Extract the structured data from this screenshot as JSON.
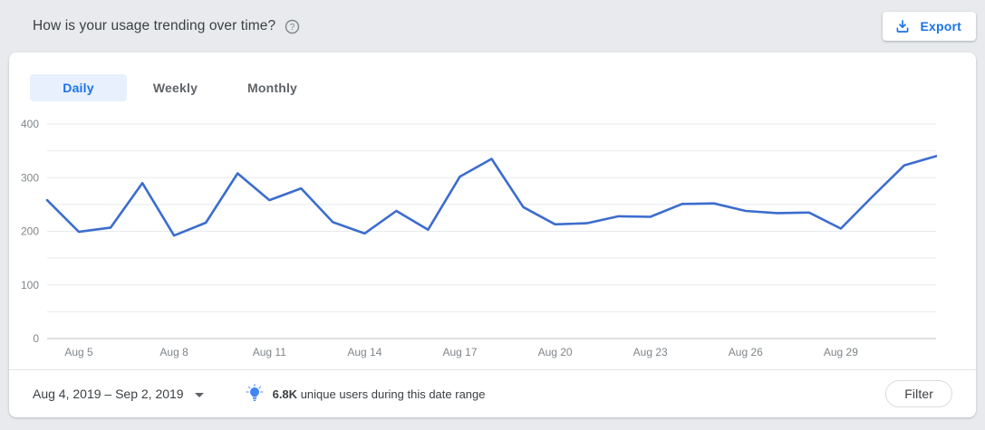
{
  "header": {
    "title": "How is your usage trending over time?",
    "help_icon": "question-mark-circle",
    "export_label": "Export",
    "export_icon": "download-tray-arrow"
  },
  "tabs": [
    {
      "label": "Daily",
      "active": true
    },
    {
      "label": "Weekly",
      "active": false
    },
    {
      "label": "Monthly",
      "active": false
    }
  ],
  "footer": {
    "date_range": "Aug 4, 2019 – Sep 2, 2019",
    "date_range_icon": "caret-down",
    "insight_icon": "lightbulb",
    "insight_value": "6.8K",
    "insight_text": "unique users during this date range",
    "filter_label": "Filter"
  },
  "colors": {
    "accent_blue": "#1a73e8",
    "active_tab_bg": "#e8f0fe",
    "line_blue": "#3c6dcd",
    "axis_text": "#80868b",
    "gridline": "#e8e9eb",
    "baseline": "#bdc1c6",
    "page_bg": "#e8eaed"
  },
  "chart_data": {
    "type": "line",
    "x": [
      "Aug 4",
      "Aug 5",
      "Aug 6",
      "Aug 7",
      "Aug 8",
      "Aug 9",
      "Aug 10",
      "Aug 11",
      "Aug 12",
      "Aug 13",
      "Aug 14",
      "Aug 15",
      "Aug 16",
      "Aug 17",
      "Aug 18",
      "Aug 19",
      "Aug 20",
      "Aug 21",
      "Aug 22",
      "Aug 23",
      "Aug 24",
      "Aug 25",
      "Aug 26",
      "Aug 27",
      "Aug 28",
      "Aug 29",
      "Aug 30",
      "Aug 31",
      "Sep 1"
    ],
    "values": [
      258,
      199,
      207,
      290,
      192,
      216,
      308,
      258,
      280,
      217,
      196,
      238,
      203,
      302,
      335,
      245,
      213,
      215,
      228,
      227,
      251,
      252,
      238,
      234,
      235,
      205,
      265,
      323,
      340
    ],
    "xticks": [
      "Aug 5",
      "Aug 8",
      "Aug 11",
      "Aug 14",
      "Aug 17",
      "Aug 20",
      "Aug 23",
      "Aug 26",
      "Aug 29"
    ],
    "yticks": [
      0,
      100,
      200,
      300,
      400
    ],
    "ylim": [
      0,
      400
    ],
    "grid_step": 50,
    "grid": "horizontal",
    "legend": "none",
    "line_color": "#3c6dcd"
  }
}
